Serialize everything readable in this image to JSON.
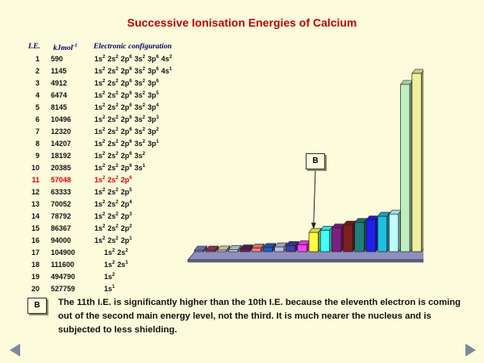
{
  "title": "Successive Ionisation Energies of Calcium",
  "headers": {
    "ie": "I.E.",
    "unit": "kJmol",
    "unit_sup": "-1",
    "config": "Electronic configuration"
  },
  "rows": [
    {
      "n": "1",
      "v": "590",
      "cfg": [
        [
          "1s",
          "2"
        ],
        [
          "2s",
          "2"
        ],
        [
          "2p",
          "6"
        ],
        [
          "3s",
          "2"
        ],
        [
          "3p",
          "6"
        ],
        [
          "4s",
          "2"
        ]
      ]
    },
    {
      "n": "2",
      "v": "1145",
      "cfg": [
        [
          "1s",
          "2"
        ],
        [
          "2s",
          "2"
        ],
        [
          "2p",
          "6"
        ],
        [
          "3s",
          "2"
        ],
        [
          "3p",
          "6"
        ],
        [
          "4s",
          "1"
        ]
      ]
    },
    {
      "n": "3",
      "v": "4912",
      "cfg": [
        [
          "1s",
          "2"
        ],
        [
          "2s",
          "2"
        ],
        [
          "2p",
          "6"
        ],
        [
          "3s",
          "2"
        ],
        [
          "3p",
          "6"
        ]
      ]
    },
    {
      "n": "4",
      "v": "6474",
      "cfg": [
        [
          "1s",
          "2"
        ],
        [
          "2s",
          "2"
        ],
        [
          "2p",
          "6"
        ],
        [
          "3s",
          "2"
        ],
        [
          "3p",
          "5"
        ]
      ]
    },
    {
      "n": "5",
      "v": "8145",
      "cfg": [
        [
          "1s",
          "2"
        ],
        [
          "2s",
          "2"
        ],
        [
          "2p",
          "6"
        ],
        [
          "3s",
          "2"
        ],
        [
          "3p",
          "4"
        ]
      ]
    },
    {
      "n": "6",
      "v": "10496",
      "cfg": [
        [
          "1s",
          "2"
        ],
        [
          "2s",
          "2"
        ],
        [
          "2p",
          "6"
        ],
        [
          "3s",
          "2"
        ],
        [
          "3p",
          "3"
        ]
      ]
    },
    {
      "n": "7",
      "v": "12320",
      "cfg": [
        [
          "1s",
          "2"
        ],
        [
          "2s",
          "2"
        ],
        [
          "2p",
          "6"
        ],
        [
          "3s",
          "2"
        ],
        [
          "3p",
          "2"
        ]
      ]
    },
    {
      "n": "8",
      "v": "14207",
      "cfg": [
        [
          "1s",
          "2"
        ],
        [
          "2s",
          "2"
        ],
        [
          "2p",
          "6"
        ],
        [
          "3s",
          "2"
        ],
        [
          "3p",
          "1"
        ]
      ]
    },
    {
      "n": "9",
      "v": "18192",
      "cfg": [
        [
          "1s",
          "2"
        ],
        [
          "2s",
          "2"
        ],
        [
          "2p",
          "6"
        ],
        [
          "3s",
          "2"
        ]
      ]
    },
    {
      "n": "10",
      "v": "20385",
      "cfg": [
        [
          "1s",
          "2"
        ],
        [
          "2s",
          "2"
        ],
        [
          "2p",
          "6"
        ],
        [
          "3s",
          "1"
        ]
      ]
    },
    {
      "n": "11",
      "v": "57048",
      "cfg": [
        [
          "1s",
          "2"
        ],
        [
          "2s",
          "2"
        ],
        [
          "2p",
          "6"
        ]
      ],
      "highlight": true
    },
    {
      "n": "12",
      "v": "63333",
      "cfg": [
        [
          "1s",
          "2"
        ],
        [
          "2s",
          "2"
        ],
        [
          "2p",
          "5"
        ]
      ]
    },
    {
      "n": "13",
      "v": "70052",
      "cfg": [
        [
          "1s",
          "2"
        ],
        [
          "2s",
          "2"
        ],
        [
          "2p",
          "4"
        ]
      ]
    },
    {
      "n": "14",
      "v": "78792",
      "cfg": [
        [
          "1s",
          "2"
        ],
        [
          "2s",
          "2"
        ],
        [
          "2p",
          "3"
        ]
      ]
    },
    {
      "n": "15",
      "v": "86367",
      "cfg": [
        [
          "1s",
          "2"
        ],
        [
          "2s",
          "2"
        ],
        [
          "2p",
          "2"
        ]
      ]
    },
    {
      "n": "16",
      "v": "94000",
      "cfg": [
        [
          "1s",
          "2"
        ],
        [
          "2s",
          "2"
        ],
        [
          "2p",
          "1"
        ]
      ]
    },
    {
      "n": "17",
      "v": "104900",
      "cfg": [
        [
          "1s",
          "2"
        ],
        [
          "2s",
          "2"
        ]
      ],
      "indent": true
    },
    {
      "n": "18",
      "v": "111600",
      "cfg": [
        [
          "1s",
          "2"
        ],
        [
          "2s",
          "1"
        ]
      ],
      "indent": true
    },
    {
      "n": "19",
      "v": "494790",
      "cfg": [
        [
          "1s",
          "2"
        ]
      ],
      "indent": true
    },
    {
      "n": "20",
      "v": "527759",
      "cfg": [
        [
          "1s",
          "1"
        ]
      ],
      "indent": true
    }
  ],
  "chart_data": {
    "type": "bar",
    "title": "",
    "xlabel": "",
    "ylabel": "",
    "categories": [
      "1",
      "2",
      "3",
      "4",
      "5",
      "6",
      "7",
      "8",
      "9",
      "10",
      "11",
      "12",
      "13",
      "14",
      "15",
      "16",
      "17",
      "18",
      "19",
      "20"
    ],
    "values": [
      590,
      1145,
      4912,
      6474,
      8145,
      10496,
      12320,
      14207,
      18192,
      20385,
      57048,
      63333,
      70052,
      78792,
      86367,
      94000,
      104900,
      111600,
      494790,
      527759
    ],
    "colors": [
      "#7f7fcf",
      "#9f3f5f",
      "#dfdfbf",
      "#bfdfdf",
      "#5f1f5f",
      "#ff7f7f",
      "#1f5fbf",
      "#bfbfdf",
      "#3f3f9f",
      "#ff3fff",
      "#ffff3f",
      "#3fffff",
      "#7f1f7f",
      "#7f1f1f",
      "#1f7f7f",
      "#1f1fef",
      "#1fbfdf",
      "#bfffff",
      "#bfefbf",
      "#efef9f"
    ],
    "ylim": [
      0,
      530000
    ],
    "annotation": {
      "label": "B",
      "points_to": "11"
    }
  },
  "explanation": {
    "badge": "B",
    "text": "The 11th I.E. is significantly higher than the 10th I.E. because the eleventh electron is coming out of the second main energy level, not the third.  It is much nearer the nucleus and is subjected to less shielding."
  },
  "nav": {
    "prev_icon": "left-triangle-icon",
    "next_icon": "right-triangle-icon"
  }
}
